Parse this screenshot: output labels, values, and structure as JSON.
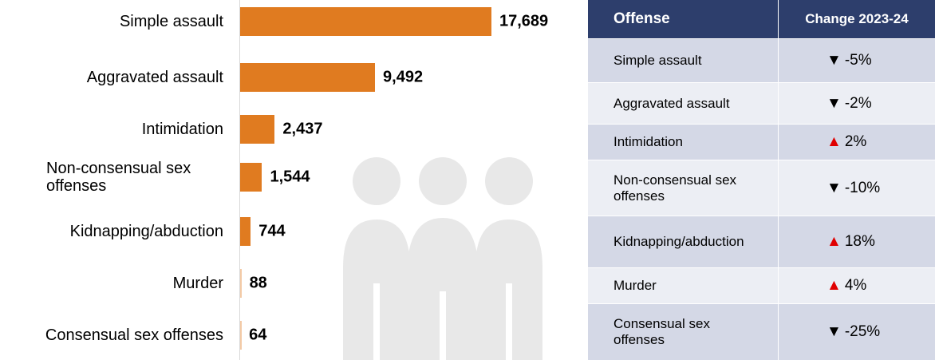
{
  "chart_data": {
    "type": "bar",
    "orientation": "horizontal",
    "categories": [
      "Simple assault",
      "Aggravated assault",
      "Intimidation",
      "Non-consensual sex offenses",
      "Kidnapping/abduction",
      "Murder",
      "Consensual sex offenses"
    ],
    "values": [
      17689,
      9492,
      2437,
      1544,
      744,
      88,
      64
    ],
    "value_labels": [
      "17,689",
      "9,492",
      "2,437",
      "1,544",
      "744",
      "88",
      "64"
    ],
    "color": "#e07b20"
  },
  "table": {
    "header": [
      "Offense",
      "Change 2023-24"
    ],
    "rows": [
      {
        "offense": "Simple assault",
        "trend": "▼",
        "change": "-5%",
        "trend_color": "#000000"
      },
      {
        "offense": "Aggravated assault",
        "trend": "▼",
        "change": "-2%",
        "trend_color": "#000000"
      },
      {
        "offense": "Intimidation",
        "trend": "▲",
        "change": "2%",
        "trend_color": "#e00000"
      },
      {
        "offense": "Non-consensual sex offenses",
        "trend": "▼",
        "change": "-10%",
        "trend_color": "#000000"
      },
      {
        "offense": "Kidnapping/abduction",
        "trend": "▲",
        "change": "18%",
        "trend_color": "#e00000"
      },
      {
        "offense": "Murder",
        "trend": "▲",
        "change": "4%",
        "trend_color": "#e00000"
      },
      {
        "offense": "Consensual sex offenses",
        "trend": "▼",
        "change": "-25%",
        "trend_color": "#000000"
      }
    ]
  }
}
